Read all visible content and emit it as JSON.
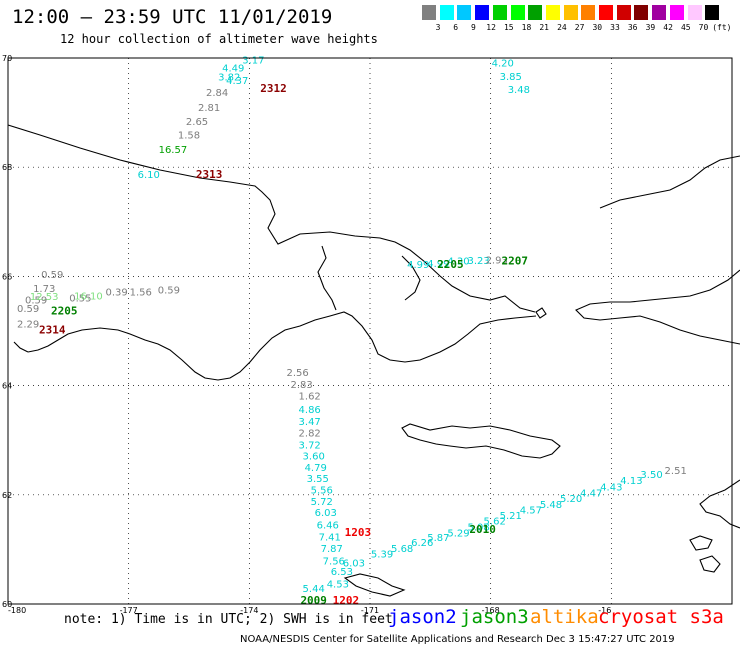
{
  "title": "12:00 – 23:59 UTC 11/01/2019",
  "subtitle": "12 hour collection of altimeter wave heights",
  "scale": {
    "colors": [
      "#808080",
      "#00ffff",
      "#00c8ff",
      "#0000ff",
      "#00d000",
      "#00ff00",
      "#00a000",
      "#ffff00",
      "#ffc000",
      "#ff8000",
      "#ff0000",
      "#d00000",
      "#800000",
      "#a000a0",
      "#ff00ff",
      "#ffc8ff",
      "#000000"
    ],
    "labels": [
      "3",
      "6",
      "9",
      "12",
      "15",
      "18",
      "21",
      "24",
      "27",
      "30",
      "33",
      "36",
      "39",
      "42",
      "45",
      "70",
      "(ft)"
    ]
  },
  "axes": {
    "lat_labels": [
      "70",
      "68",
      "66",
      "64",
      "62",
      "60"
    ],
    "lon_labels": [
      "-180",
      "-177",
      "-174",
      "-171",
      "-168",
      "-16"
    ]
  },
  "tracks": [
    {
      "color": "#00d0d0",
      "points": [
        {
          "lon": -173.9,
          "lat": 69.9,
          "v": "3.17"
        },
        {
          "lon": -174.4,
          "lat": 69.75,
          "v": "4.49"
        },
        {
          "lon": -174.5,
          "lat": 69.59,
          "v": "3.82"
        },
        {
          "lon": -174.3,
          "lat": 69.52,
          "v": "4.37"
        }
      ]
    },
    {
      "color": "#7d7d7d",
      "points": [
        {
          "lon": -174.8,
          "lat": 69.3,
          "v": "2.84"
        },
        {
          "lon": -175.0,
          "lat": 69.03,
          "v": "2.81"
        },
        {
          "lon": -175.3,
          "lat": 68.77,
          "v": "2.65"
        },
        {
          "lon": -175.5,
          "lat": 68.53,
          "v": "1.58"
        }
      ]
    },
    {
      "color": "#00a000",
      "points": [
        {
          "lon": -175.9,
          "lat": 68.26,
          "v": "16.57"
        }
      ]
    },
    {
      "color": "#00d0d0",
      "points": [
        {
          "lon": -176.5,
          "lat": 67.8,
          "v": "6.10"
        }
      ]
    },
    {
      "color": "#00d0d0",
      "points": [
        {
          "lon": -167.7,
          "lat": 69.84,
          "v": "4.20"
        },
        {
          "lon": -167.5,
          "lat": 69.6,
          "v": "3.85"
        },
        {
          "lon": -167.3,
          "lat": 69.36,
          "v": "3.48"
        }
      ]
    },
    {
      "color": "#7d7d7d",
      "points": [
        {
          "lon": -178.9,
          "lat": 65.97,
          "v": "0.59"
        },
        {
          "lon": -179.1,
          "lat": 65.71,
          "v": "1.73"
        },
        {
          "lon": -178.2,
          "lat": 65.54,
          "v": "0.55"
        },
        {
          "lon": -179.3,
          "lat": 65.5,
          "v": "0.59"
        },
        {
          "lon": -179.5,
          "lat": 65.35,
          "v": "0.59"
        },
        {
          "lon": -179.5,
          "lat": 65.06,
          "v": "2.29"
        },
        {
          "lon": -177.3,
          "lat": 65.65,
          "v": "0.39"
        },
        {
          "lon": -176.7,
          "lat": 65.65,
          "v": "1.56"
        },
        {
          "lon": -176.0,
          "lat": 65.69,
          "v": "0.59"
        }
      ]
    },
    {
      "color": "#80e080",
      "points": [
        {
          "lon": -179.1,
          "lat": 65.57,
          "v": "12.53"
        },
        {
          "lon": -178.0,
          "lat": 65.58,
          "v": "16.10"
        }
      ]
    },
    {
      "color": "#7d7d7d",
      "points": [
        {
          "lon": -172.8,
          "lat": 64.18,
          "v": "2.56"
        },
        {
          "lon": -172.7,
          "lat": 63.96,
          "v": "2.83"
        },
        {
          "lon": -172.5,
          "lat": 63.75,
          "v": "1.62"
        },
        {
          "lon": -172.5,
          "lat": 63.07,
          "v": "2.82"
        }
      ]
    },
    {
      "color": "#00d0d0",
      "points": [
        {
          "lon": -172.5,
          "lat": 63.5,
          "v": "4.86"
        },
        {
          "lon": -172.5,
          "lat": 63.28,
          "v": "3.47"
        },
        {
          "lon": -172.5,
          "lat": 62.85,
          "v": "3.72"
        },
        {
          "lon": -172.4,
          "lat": 62.65,
          "v": "3.60"
        },
        {
          "lon": -172.35,
          "lat": 62.44,
          "v": "4.79"
        },
        {
          "lon": -172.3,
          "lat": 62.23,
          "v": "3.55"
        },
        {
          "lon": -172.2,
          "lat": 62.02,
          "v": "5.56"
        },
        {
          "lon": -172.2,
          "lat": 61.81,
          "v": "5.72"
        },
        {
          "lon": -172.1,
          "lat": 61.61,
          "v": "6.03"
        },
        {
          "lon": -172.05,
          "lat": 61.38,
          "v": "6.46"
        },
        {
          "lon": -172.0,
          "lat": 61.16,
          "v": "7.41"
        },
        {
          "lon": -171.95,
          "lat": 60.95,
          "v": "7.87"
        },
        {
          "lon": -171.9,
          "lat": 60.72,
          "v": "7.56"
        },
        {
          "lon": -171.7,
          "lat": 60.53,
          "v": "6.53"
        },
        {
          "lon": -172.4,
          "lat": 60.22,
          "v": "5.44"
        },
        {
          "lon": -171.8,
          "lat": 60.3,
          "v": "4.53"
        }
      ]
    },
    {
      "color": "#00d0d0",
      "points": [
        {
          "lon": -171.4,
          "lat": 60.69,
          "v": "6.03"
        },
        {
          "lon": -170.7,
          "lat": 60.85,
          "v": "5.39"
        },
        {
          "lon": -170.2,
          "lat": 60.95,
          "v": "5.68"
        },
        {
          "lon": -169.7,
          "lat": 61.06,
          "v": "6.26"
        },
        {
          "lon": -169.3,
          "lat": 61.15,
          "v": "5.87"
        },
        {
          "lon": -168.8,
          "lat": 61.24,
          "v": "5.29"
        },
        {
          "lon": -168.3,
          "lat": 61.35,
          "v": "5.08"
        },
        {
          "lon": -167.9,
          "lat": 61.46,
          "v": "5.62"
        },
        {
          "lon": -167.5,
          "lat": 61.56,
          "v": "5.21"
        },
        {
          "lon": -167.0,
          "lat": 61.66,
          "v": "4.57"
        },
        {
          "lon": -166.5,
          "lat": 61.76,
          "v": "5.48"
        },
        {
          "lon": -166.0,
          "lat": 61.87,
          "v": "5.20"
        },
        {
          "lon": -165.5,
          "lat": 61.97,
          "v": "4.47"
        },
        {
          "lon": -165.0,
          "lat": 62.08,
          "v": "4.43"
        },
        {
          "lon": -164.5,
          "lat": 62.2,
          "v": "4.13"
        },
        {
          "lon": -164.0,
          "lat": 62.31,
          "v": "3.50"
        }
      ]
    },
    {
      "color": "#7d7d7d",
      "points": [
        {
          "lon": -163.4,
          "lat": 62.38,
          "v": "2.51"
        }
      ]
    },
    {
      "color": "#00d0d0",
      "points": [
        {
          "lon": -169.8,
          "lat": 66.15,
          "v": "4.99"
        },
        {
          "lon": -169.3,
          "lat": 66.17,
          "v": "4.99"
        },
        {
          "lon": -168.8,
          "lat": 66.22,
          "v": "4.30"
        },
        {
          "lon": -168.3,
          "lat": 66.23,
          "v": "3.23"
        }
      ]
    },
    {
      "color": "#7d7d7d",
      "points": [
        {
          "lon": -167.85,
          "lat": 66.24,
          "v": "2.93"
        }
      ]
    }
  ],
  "passes": [
    {
      "lon": -173.4,
      "lat": 69.38,
      "t": "2312",
      "color": "#8b0000"
    },
    {
      "lon": -175.0,
      "lat": 67.8,
      "t": "2313",
      "color": "#8b0000"
    },
    {
      "lon": -178.9,
      "lat": 64.95,
      "t": "2314",
      "color": "#8b0000"
    },
    {
      "lon": -178.6,
      "lat": 65.3,
      "t": "2205",
      "color": "#008000"
    },
    {
      "lon": -169.0,
      "lat": 66.15,
      "t": "2205",
      "color": "#008000"
    },
    {
      "lon": -167.4,
      "lat": 66.22,
      "t": "2207",
      "color": "#008000"
    },
    {
      "lon": -171.3,
      "lat": 61.25,
      "t": "1203",
      "color": "#ee0000"
    },
    {
      "lon": -171.6,
      "lat": 60.0,
      "t": "1202",
      "color": "#ee0000"
    },
    {
      "lon": -172.4,
      "lat": 60.0,
      "t": "2009",
      "color": "#008000"
    },
    {
      "lon": -168.2,
      "lat": 61.3,
      "t": "2010",
      "color": "#008000"
    }
  ],
  "note": "note: 1) Time is in UTC; 2) SWH is in feet",
  "legend": [
    {
      "name": "jason2",
      "color": "#0000ff"
    },
    {
      "name": "jason3",
      "color": "#00a000"
    },
    {
      "name": "altika",
      "color": "#ff8c00"
    },
    {
      "name": "cryosat s3a",
      "color": "#ff0000"
    }
  ],
  "footer": "NOAA/NESDIS Center for Satellite Applications and Research   Dec  3 15:47:27 UTC 2019"
}
